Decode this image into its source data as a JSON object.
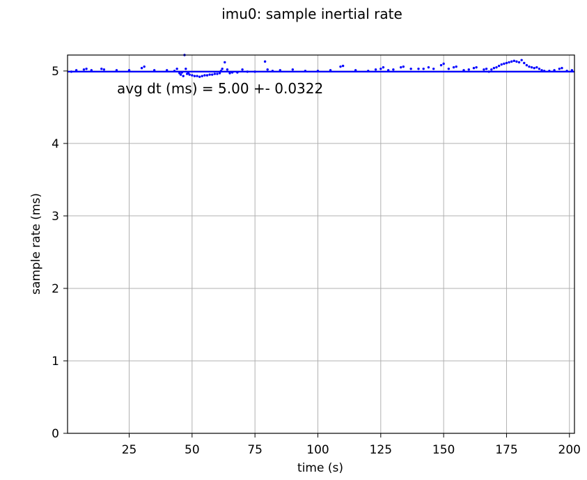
{
  "chart_data": {
    "type": "scatter",
    "title": "imu0: sample inertial rate",
    "xlabel": "time (s)",
    "ylabel": "sample rate (ms)",
    "xlim": [
      0.5,
      202
    ],
    "ylim": [
      0,
      5.22
    ],
    "x_ticks": [
      25,
      50,
      75,
      100,
      125,
      150,
      175,
      200
    ],
    "x_tick_labels": [
      "25",
      "50",
      "75",
      "100",
      "125",
      "150",
      "175",
      "200"
    ],
    "y_ticks": [
      0,
      1,
      2,
      3,
      4,
      5
    ],
    "y_tick_labels": [
      "0",
      "1",
      "2",
      "3",
      "4",
      "5"
    ],
    "grid": true,
    "marker_color": "#0000ff",
    "annotation": "avg dt (ms) = 5.00 +- 0.0322",
    "series": [
      {
        "baseline_y": 5.0,
        "baseline_x_range": [
          0.5,
          202
        ],
        "points": [
          {
            "x": 2,
            "y": 4.99
          },
          {
            "x": 4,
            "y": 5.01
          },
          {
            "x": 7,
            "y": 5.02
          },
          {
            "x": 8,
            "y": 5.03
          },
          {
            "x": 10,
            "y": 5.01
          },
          {
            "x": 14,
            "y": 5.03
          },
          {
            "x": 15,
            "y": 5.02
          },
          {
            "x": 20,
            "y": 5.01
          },
          {
            "x": 25,
            "y": 5.01
          },
          {
            "x": 30,
            "y": 5.04
          },
          {
            "x": 31,
            "y": 5.06
          },
          {
            "x": 35,
            "y": 5.01
          },
          {
            "x": 40,
            "y": 5.01
          },
          {
            "x": 43,
            "y": 5.0
          },
          {
            "x": 44,
            "y": 5.03
          },
          {
            "x": 45,
            "y": 4.97
          },
          {
            "x": 45.5,
            "y": 4.95
          },
          {
            "x": 46,
            "y": 4.98
          },
          {
            "x": 46.5,
            "y": 4.93
          },
          {
            "x": 47,
            "y": 5.22
          },
          {
            "x": 47.5,
            "y": 5.03
          },
          {
            "x": 48,
            "y": 4.96
          },
          {
            "x": 48.5,
            "y": 4.97
          },
          {
            "x": 49,
            "y": 4.95
          },
          {
            "x": 50,
            "y": 4.94
          },
          {
            "x": 51,
            "y": 4.93
          },
          {
            "x": 52,
            "y": 4.93
          },
          {
            "x": 53,
            "y": 4.92
          },
          {
            "x": 54,
            "y": 4.93
          },
          {
            "x": 55,
            "y": 4.94
          },
          {
            "x": 56,
            "y": 4.94
          },
          {
            "x": 57,
            "y": 4.95
          },
          {
            "x": 58,
            "y": 4.95
          },
          {
            "x": 59,
            "y": 4.96
          },
          {
            "x": 60,
            "y": 4.96
          },
          {
            "x": 61,
            "y": 4.97
          },
          {
            "x": 61.5,
            "y": 5.0
          },
          {
            "x": 62,
            "y": 5.03
          },
          {
            "x": 63,
            "y": 5.12
          },
          {
            "x": 64,
            "y": 5.02
          },
          {
            "x": 65,
            "y": 4.97
          },
          {
            "x": 66,
            "y": 4.98
          },
          {
            "x": 68,
            "y": 4.98
          },
          {
            "x": 70,
            "y": 5.02
          },
          {
            "x": 72,
            "y": 4.99
          },
          {
            "x": 75,
            "y": 4.99
          },
          {
            "x": 79,
            "y": 5.13
          },
          {
            "x": 80,
            "y": 5.02
          },
          {
            "x": 82,
            "y": 5.0
          },
          {
            "x": 85,
            "y": 5.01
          },
          {
            "x": 90,
            "y": 5.02
          },
          {
            "x": 95,
            "y": 5.0
          },
          {
            "x": 100,
            "y": 5.0
          },
          {
            "x": 105,
            "y": 5.01
          },
          {
            "x": 109,
            "y": 5.06
          },
          {
            "x": 110,
            "y": 5.07
          },
          {
            "x": 115,
            "y": 5.01
          },
          {
            "x": 120,
            "y": 5.0
          },
          {
            "x": 123,
            "y": 5.02
          },
          {
            "x": 125,
            "y": 5.03
          },
          {
            "x": 126,
            "y": 5.05
          },
          {
            "x": 128,
            "y": 5.01
          },
          {
            "x": 130,
            "y": 5.02
          },
          {
            "x": 133,
            "y": 5.05
          },
          {
            "x": 134,
            "y": 5.06
          },
          {
            "x": 137,
            "y": 5.03
          },
          {
            "x": 140,
            "y": 5.03
          },
          {
            "x": 142,
            "y": 5.03
          },
          {
            "x": 144,
            "y": 5.05
          },
          {
            "x": 146,
            "y": 5.03
          },
          {
            "x": 149,
            "y": 5.08
          },
          {
            "x": 150,
            "y": 5.1
          },
          {
            "x": 152,
            "y": 5.03
          },
          {
            "x": 154,
            "y": 5.05
          },
          {
            "x": 155,
            "y": 5.06
          },
          {
            "x": 158,
            "y": 5.01
          },
          {
            "x": 160,
            "y": 5.02
          },
          {
            "x": 162,
            "y": 5.04
          },
          {
            "x": 163,
            "y": 5.05
          },
          {
            "x": 166,
            "y": 5.02
          },
          {
            "x": 167,
            "y": 5.03
          },
          {
            "x": 168,
            "y": 4.99
          },
          {
            "x": 169,
            "y": 5.02
          },
          {
            "x": 170,
            "y": 5.04
          },
          {
            "x": 171,
            "y": 5.05
          },
          {
            "x": 172,
            "y": 5.07
          },
          {
            "x": 173,
            "y": 5.09
          },
          {
            "x": 174,
            "y": 5.1
          },
          {
            "x": 175,
            "y": 5.11
          },
          {
            "x": 176,
            "y": 5.12
          },
          {
            "x": 177,
            "y": 5.13
          },
          {
            "x": 178,
            "y": 5.14
          },
          {
            "x": 179,
            "y": 5.13
          },
          {
            "x": 180,
            "y": 5.12
          },
          {
            "x": 181,
            "y": 5.15
          },
          {
            "x": 182,
            "y": 5.11
          },
          {
            "x": 183,
            "y": 5.08
          },
          {
            "x": 184,
            "y": 5.06
          },
          {
            "x": 185,
            "y": 5.05
          },
          {
            "x": 186,
            "y": 5.04
          },
          {
            "x": 187,
            "y": 5.05
          },
          {
            "x": 188,
            "y": 5.03
          },
          {
            "x": 189,
            "y": 5.01
          },
          {
            "x": 190,
            "y": 5.0
          },
          {
            "x": 192,
            "y": 5.0
          },
          {
            "x": 194,
            "y": 5.01
          },
          {
            "x": 196,
            "y": 5.03
          },
          {
            "x": 197,
            "y": 5.04
          },
          {
            "x": 199,
            "y": 5.0
          },
          {
            "x": 201,
            "y": 5.01
          }
        ]
      }
    ]
  }
}
